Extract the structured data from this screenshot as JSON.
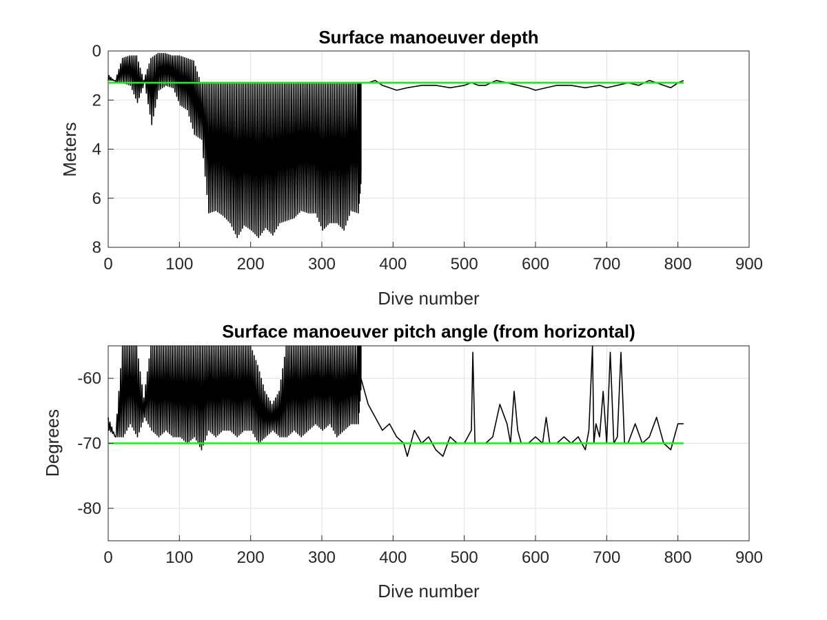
{
  "chart_data": [
    {
      "type": "line",
      "title": "Surface manoeuver depth",
      "xlabel": "Dive number",
      "ylabel": "Meters",
      "xlim": [
        0,
        900
      ],
      "ylim": [
        0,
        8
      ],
      "y_reversed": true,
      "grid": true,
      "xticks": [
        0,
        100,
        200,
        300,
        400,
        500,
        600,
        700,
        800,
        900
      ],
      "yticks": [
        0,
        2,
        4,
        6,
        8
      ],
      "series": [
        {
          "color": "#000000",
          "style": "oscillating",
          "x": [
            0,
            10,
            20,
            30,
            40,
            50,
            60,
            70,
            80,
            90,
            100,
            110,
            120,
            130,
            140,
            150,
            160,
            170,
            180,
            190,
            200,
            210,
            220,
            230,
            240,
            250,
            260,
            270,
            280,
            290,
            300,
            310,
            320,
            330,
            340,
            350,
            355
          ],
          "lows": [
            1.2,
            1.2,
            0.3,
            0.2,
            0.2,
            1.2,
            0.3,
            0.1,
            0.1,
            0.2,
            0.2,
            0.3,
            0.4,
            1.3,
            1.3,
            1.3,
            1.3,
            1.3,
            1.3,
            1.3,
            1.3,
            1.3,
            1.3,
            1.3,
            1.3,
            1.3,
            1.3,
            1.3,
            1.3,
            1.3,
            1.3,
            1.3,
            1.3,
            1.3,
            1.3,
            1.3,
            1.3
          ],
          "highs": [
            1.0,
            1.3,
            1.3,
            1.4,
            2.1,
            1.3,
            3.0,
            1.6,
            1.4,
            1.5,
            2.2,
            2.4,
            3.4,
            3.6,
            6.6,
            6.5,
            6.7,
            7.0,
            7.6,
            7.1,
            7.3,
            7.6,
            7.2,
            7.5,
            7.0,
            6.9,
            6.8,
            6.5,
            6.6,
            6.6,
            7.3,
            7.0,
            7.0,
            7.3,
            6.5,
            6.6,
            5.0
          ]
        },
        {
          "color": "#000000",
          "style": "line",
          "x": [
            355,
            365,
            375,
            385,
            395,
            405,
            420,
            440,
            460,
            480,
            500,
            510,
            520,
            530,
            545,
            560,
            575,
            590,
            600,
            615,
            630,
            650,
            670,
            690,
            700,
            715,
            730,
            745,
            760,
            770,
            780,
            790,
            800,
            808
          ],
          "y": [
            1.3,
            1.3,
            1.2,
            1.4,
            1.5,
            1.6,
            1.5,
            1.4,
            1.4,
            1.5,
            1.4,
            1.3,
            1.4,
            1.4,
            1.2,
            1.3,
            1.4,
            1.5,
            1.6,
            1.5,
            1.4,
            1.4,
            1.5,
            1.4,
            1.5,
            1.4,
            1.3,
            1.4,
            1.2,
            1.3,
            1.4,
            1.5,
            1.3,
            1.2
          ]
        },
        {
          "color": "#00ff00",
          "style": "line",
          "x": [
            0,
            808
          ],
          "y": [
            1.3,
            1.3
          ]
        }
      ]
    },
    {
      "type": "line",
      "title": "Surface manoeuver pitch angle (from horizontal)",
      "xlabel": "Dive number",
      "ylabel": "Degrees",
      "xlim": [
        0,
        900
      ],
      "ylim": [
        -85,
        -55
      ],
      "y_reversed": false,
      "grid": true,
      "xticks": [
        0,
        100,
        200,
        300,
        400,
        500,
        600,
        700,
        800,
        900
      ],
      "yticks": [
        -60,
        -70,
        -80
      ],
      "series": [
        {
          "color": "#000000",
          "style": "oscillating",
          "x": [
            0,
            10,
            20,
            30,
            40,
            50,
            60,
            70,
            80,
            90,
            100,
            110,
            120,
            130,
            140,
            150,
            160,
            170,
            180,
            190,
            200,
            210,
            220,
            230,
            240,
            250,
            260,
            270,
            280,
            290,
            300,
            310,
            320,
            330,
            340,
            350,
            355
          ],
          "lows": [
            -66,
            -69,
            -55,
            -55,
            -55,
            -63,
            -55,
            -55,
            -55,
            -55,
            -55,
            -55,
            -55,
            -55,
            -55,
            -55,
            -55,
            -55,
            -55,
            -55,
            -55,
            -58,
            -62,
            -64,
            -62,
            -55,
            -55,
            -55,
            -55,
            -55,
            -55,
            -55,
            -55,
            -55,
            -55,
            -55,
            -55
          ],
          "highs": [
            -68,
            -69,
            -69,
            -67,
            -69,
            -66,
            -68,
            -69,
            -68,
            -69,
            -69,
            -70,
            -69,
            -71,
            -68,
            -69,
            -68,
            -68,
            -69,
            -68,
            -68,
            -70,
            -69,
            -68,
            -69,
            -69,
            -68,
            -69,
            -68,
            -67,
            -68,
            -67,
            -69,
            -68,
            -67,
            -67,
            -60
          ]
        },
        {
          "color": "#000000",
          "style": "line",
          "x": [
            355,
            365,
            375,
            385,
            395,
            405,
            415,
            420,
            430,
            440,
            450,
            460,
            470,
            480,
            490,
            500,
            505,
            510,
            512,
            515,
            520,
            530,
            540,
            550,
            560,
            565,
            570,
            575,
            580,
            590,
            600,
            610,
            615,
            620,
            630,
            640,
            650,
            660,
            670,
            675,
            680,
            682,
            685,
            690,
            695,
            700,
            705,
            710,
            715,
            720,
            725,
            730,
            740,
            750,
            760,
            770,
            775,
            780,
            790,
            800,
            808
          ],
          "y": [
            -60,
            -64,
            -66,
            -68,
            -67,
            -69,
            -70,
            -72,
            -68,
            -70,
            -69,
            -71,
            -72,
            -69,
            -70,
            -70,
            -69,
            -68,
            -56,
            -70,
            -70,
            -70,
            -69,
            -64,
            -67,
            -70,
            -62,
            -68,
            -70,
            -70,
            -69,
            -70,
            -66,
            -70,
            -70,
            -69,
            -70,
            -69,
            -71,
            -68,
            -55,
            -70,
            -67,
            -69,
            -62,
            -70,
            -56,
            -70,
            -69,
            -56,
            -70,
            -70,
            -67,
            -70,
            -69,
            -66,
            -68,
            -70,
            -71,
            -67,
            -67
          ]
        },
        {
          "color": "#00ff00",
          "style": "line",
          "x": [
            0,
            808
          ],
          "y": [
            -70,
            -70
          ]
        }
      ]
    }
  ]
}
